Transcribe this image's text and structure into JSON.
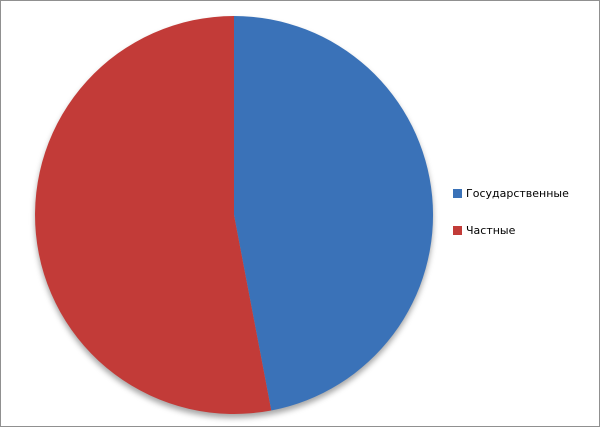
{
  "window": {
    "background": "#ffffff",
    "border_color": "#909090"
  },
  "chart_data": {
    "type": "pie",
    "title": "",
    "categories": [
      "Государственные",
      "Частные"
    ],
    "values": [
      47,
      53
    ],
    "colors": [
      "#3A72B8",
      "#C23B38"
    ],
    "start_angle_deg": 0,
    "direction": "clockwise",
    "legend_position": "right",
    "data_labels": "none"
  },
  "legend": {
    "items": [
      {
        "label": "Государственные",
        "color": "#3A72B8"
      },
      {
        "label": "Частные",
        "color": "#C23B38"
      }
    ]
  }
}
